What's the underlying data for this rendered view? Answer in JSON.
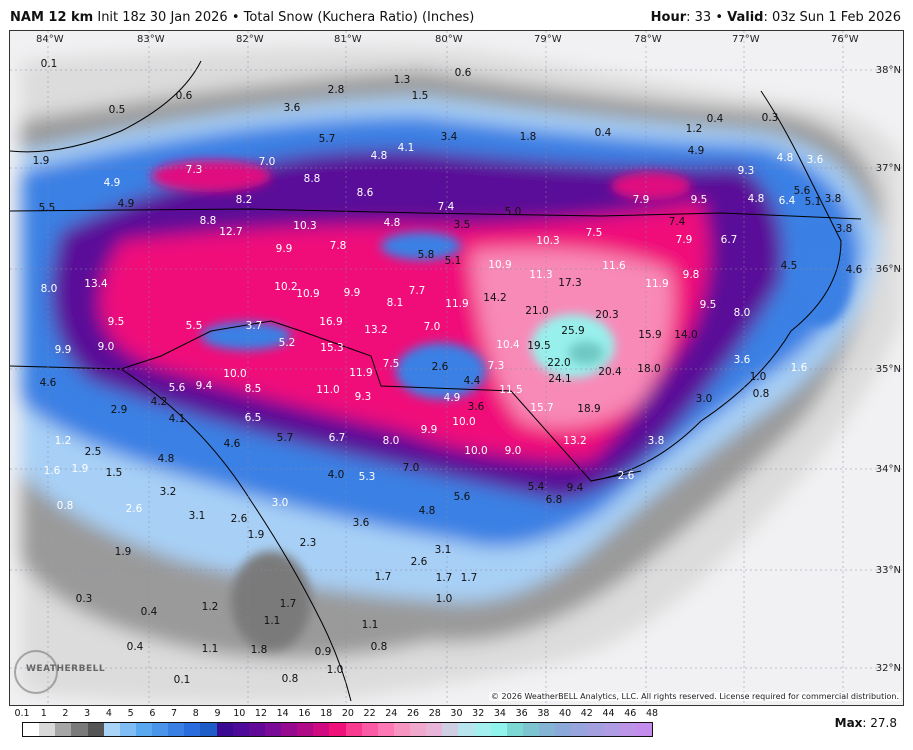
{
  "header": {
    "model": "NAM 12 km",
    "init": "Init 18z 30 Jan 2026",
    "separator": "•",
    "product": "Total Snow (Kuchera Ratio) (Inches)",
    "hour_label": "Hour",
    "hour": "33",
    "valid_label": "Valid",
    "valid": "03z Sun 1 Feb 2026"
  },
  "map": {
    "longitude_labels": [
      "84°W",
      "83°W",
      "82°W",
      "81°W",
      "80°W",
      "79°W",
      "78°W",
      "77°W",
      "76°W"
    ],
    "latitude_labels": [
      "38°N",
      "37°N",
      "36°N",
      "35°N",
      "34°N",
      "33°N",
      "32°N"
    ],
    "snow_totals": [
      "0.1",
      "0.6",
      "1.3",
      "1.5",
      "0.6",
      "0.5",
      "3.6",
      "2.8",
      "3.4",
      "1.8",
      "0.4",
      "1.2",
      "0.4",
      "0.3",
      "5.7",
      "4.8",
      "4.1",
      "4.9",
      "4.8",
      "3.6",
      "1.9",
      "7.3",
      "7.0",
      "9.3",
      "5.6",
      "3.8",
      "4.9",
      "8.8",
      "8.6",
      "7.4",
      "7.9",
      "9.5",
      "4.8",
      "6.4",
      "5.1",
      "5.5",
      "4.9",
      "8.2",
      "5.0",
      "4.8",
      "3.5",
      "7.4",
      "8.8",
      "12.7",
      "10.3",
      "7.5",
      "7.9",
      "6.7",
      "3.8",
      "9.9",
      "7.8",
      "10.3",
      "5.8",
      "5.1",
      "4.6",
      "4.5",
      "13.4",
      "10.9",
      "11.3",
      "17.3",
      "11.6",
      "9.8",
      "8.0",
      "10.2",
      "10.9",
      "9.9",
      "8.1",
      "7.7",
      "11.9",
      "14.2",
      "11.9",
      "9.5",
      "5.5",
      "3.7",
      "16.9",
      "13.2",
      "7.0",
      "21.0",
      "20.3",
      "9.5",
      "8.0",
      "25.9",
      "15.9",
      "14.0",
      "9.9",
      "9.0",
      "5.2",
      "15.3",
      "10.4",
      "19.5",
      "22.0",
      "4.6",
      "5.6",
      "9.4",
      "10.0",
      "8.5",
      "11.9",
      "7.5",
      "2.6",
      "7.3",
      "24.1",
      "20.4",
      "18.0",
      "3.6",
      "1.6",
      "4.4",
      "11.0",
      "1.0",
      "0.8",
      "4.2",
      "9.3",
      "4.9",
      "3.6",
      "11.5",
      "3.0",
      "2.9",
      "15.7",
      "18.9",
      "4.1",
      "6.5",
      "9.9",
      "10.0",
      "1.2",
      "2.5",
      "5.7",
      "6.7",
      "8.0",
      "13.2",
      "3.8",
      "4.6",
      "10.0",
      "9.0",
      "1.6",
      "1.9",
      "1.5",
      "4.8",
      "7.0",
      "4.0",
      "5.3",
      "2.6",
      "3.2",
      "5.4",
      "9.4",
      "0.8",
      "2.6",
      "3.0",
      "5.6",
      "6.8",
      "3.1",
      "4.8",
      "2.6",
      "1.9",
      "3.6",
      "2.3",
      "3.1",
      "1.9",
      "2.6",
      "1.7",
      "1.7",
      "1.7",
      "0.3",
      "1.0",
      "1.7",
      "0.4",
      "1.2",
      "1.1",
      "1.1",
      "0.8",
      "0.4",
      "1.1",
      "1.8",
      "0.9",
      "1.0",
      "0.1",
      "0.8"
    ],
    "copyright": "© 2026 WeatherBELL Analytics, LLC. All rights reserved. License required for commercial distribution.",
    "logo_text": "WeatherBELL"
  },
  "colorbar": {
    "labels": [
      "0.1",
      "1",
      "2",
      "3",
      "4",
      "5",
      "6",
      "7",
      "8",
      "9",
      "10",
      "12",
      "14",
      "16",
      "18",
      "20",
      "22",
      "24",
      "26",
      "28",
      "30",
      "32",
      "34",
      "36",
      "38",
      "40",
      "42",
      "44",
      "46",
      "48"
    ],
    "colors": [
      "#ffffff",
      "#d9d9d9",
      "#a6a6a6",
      "#7a7a7a",
      "#555555",
      "#a8d4f8",
      "#80bdf5",
      "#5aa8f0",
      "#4a94ea",
      "#3a80e4",
      "#2a6cde",
      "#1e5cc8",
      "#3a0a90",
      "#4e0a98",
      "#620a98",
      "#7a0a98",
      "#960a90",
      "#b00a88",
      "#d00a80",
      "#f0107a",
      "#f83a90",
      "#fb5aa4",
      "#fd78b4",
      "#f894c0",
      "#f0a8cc",
      "#e8b4d8",
      "#cfcfe4",
      "#b8e4ee",
      "#a4f0f0",
      "#90f4ec",
      "#7cd8d4",
      "#7cc4d0",
      "#84b4d4",
      "#8ca8d8",
      "#98a4dc",
      "#a4a0e0",
      "#b09ce4",
      "#bc94e8",
      "#c48cec"
    ],
    "max_label": "Max",
    "max_value": "27.8"
  }
}
